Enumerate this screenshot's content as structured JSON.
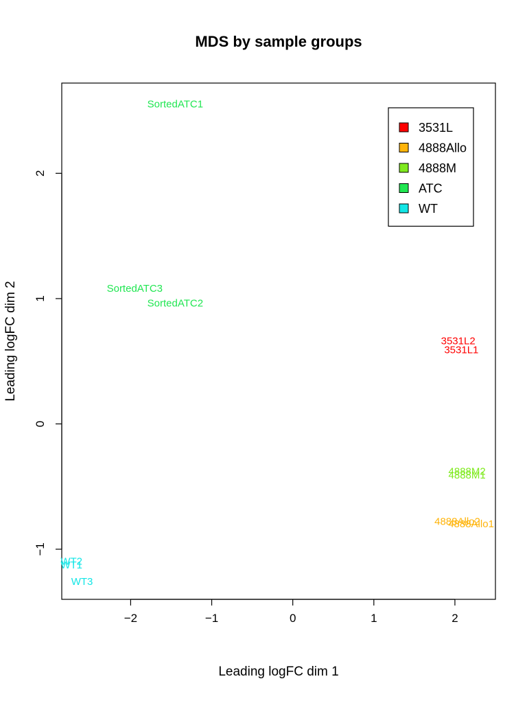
{
  "chart_data": {
    "type": "scatter",
    "title": "MDS by sample groups",
    "xlabel": "Leading logFC dim 1",
    "ylabel": "Leading logFC dim 2",
    "xlim": [
      -2.85,
      2.5
    ],
    "ylim": [
      -1.4,
      2.72
    ],
    "xticks": [
      "−2",
      "−1",
      "0",
      "1",
      "2"
    ],
    "xtick_values": [
      -2,
      -1,
      0,
      1,
      2
    ],
    "yticks": [
      "−1",
      "0",
      "1",
      "2"
    ],
    "ytick_values": [
      -1,
      0,
      1,
      2
    ],
    "grid": false,
    "legend_position": "top-right",
    "points": [
      {
        "label": "SortedATC1",
        "x": -1.45,
        "y": 2.55,
        "group": "ATC"
      },
      {
        "label": "SortedATC3",
        "x": -1.95,
        "y": 1.08,
        "group": "ATC"
      },
      {
        "label": "SortedATC2",
        "x": -1.45,
        "y": 0.96,
        "group": "ATC"
      },
      {
        "label": "3531L2",
        "x": 2.04,
        "y": 0.66,
        "group": "3531L"
      },
      {
        "label": "3531L1",
        "x": 2.08,
        "y": 0.59,
        "group": "3531L"
      },
      {
        "label": "4888M2",
        "x": 2.15,
        "y": -0.38,
        "group": "4888M"
      },
      {
        "label": "4888M1",
        "x": 2.15,
        "y": -0.41,
        "group": "4888M"
      },
      {
        "label": "4888Allo2",
        "x": 2.03,
        "y": -0.78,
        "group": "4888Allo"
      },
      {
        "label": "4888Allo1",
        "x": 2.2,
        "y": -0.8,
        "group": "4888Allo"
      },
      {
        "label": "WT2",
        "x": -2.73,
        "y": -1.1,
        "group": "WT"
      },
      {
        "label": "WT1",
        "x": -2.73,
        "y": -1.13,
        "group": "WT"
      },
      {
        "label": "WT3",
        "x": -2.6,
        "y": -1.26,
        "group": "WT"
      }
    ],
    "legend": [
      {
        "name": "3531L",
        "color": "#ff0000"
      },
      {
        "name": "4888Allo",
        "color": "#ffb40a"
      },
      {
        "name": "4888M",
        "color": "#7fea1e"
      },
      {
        "name": "ATC",
        "color": "#20e651"
      },
      {
        "name": "WT",
        "color": "#12e6e6"
      }
    ]
  }
}
